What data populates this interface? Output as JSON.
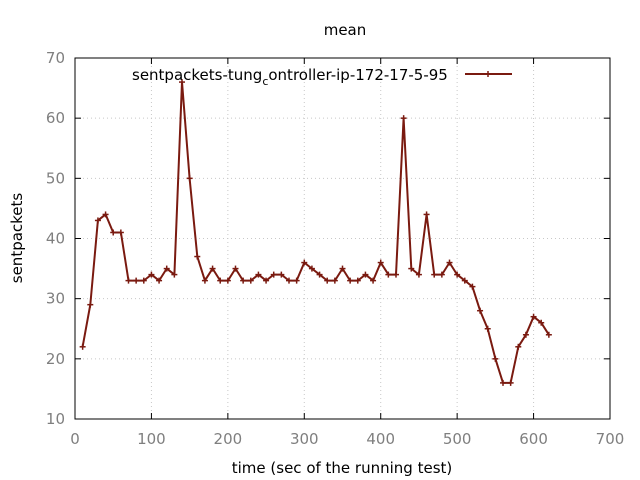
{
  "chart_data": {
    "type": "line",
    "title": "mean",
    "xlabel": "time (sec of the running test)",
    "ylabel": "sentpackets",
    "xlim": [
      0,
      700
    ],
    "ylim": [
      10,
      70
    ],
    "xticks": [
      0,
      100,
      200,
      300,
      400,
      500,
      600,
      700
    ],
    "yticks": [
      10,
      20,
      30,
      40,
      50,
      60,
      70
    ],
    "grid": true,
    "legend_position": "top-right",
    "series": [
      {
        "name_main": "sentpackets-tung",
        "name_subscript": "c",
        "name_rest": "ontroller-ip-172-17-5-95",
        "color": "#7a1a10",
        "x": [
          10,
          20,
          30,
          40,
          50,
          60,
          70,
          80,
          90,
          100,
          110,
          120,
          130,
          140,
          150,
          160,
          170,
          180,
          190,
          200,
          210,
          220,
          230,
          240,
          250,
          260,
          270,
          280,
          290,
          300,
          310,
          320,
          330,
          340,
          350,
          360,
          370,
          380,
          390,
          400,
          410,
          420,
          430,
          440,
          450,
          460,
          470,
          480,
          490,
          500,
          510,
          520,
          530,
          540,
          550,
          560,
          570,
          580,
          590,
          600,
          610,
          620
        ],
        "y": [
          22,
          29,
          43,
          44,
          41,
          41,
          33,
          33,
          33,
          34,
          33,
          35,
          34,
          66,
          50,
          37,
          33,
          35,
          33,
          33,
          35,
          33,
          33,
          34,
          33,
          34,
          34,
          33,
          33,
          36,
          35,
          34,
          33,
          33,
          35,
          33,
          33,
          34,
          33,
          36,
          34,
          34,
          60,
          35,
          34,
          44,
          34,
          34,
          36,
          34,
          33,
          32,
          28,
          25,
          20,
          16,
          16,
          22,
          24,
          27,
          26,
          24
        ]
      }
    ]
  }
}
